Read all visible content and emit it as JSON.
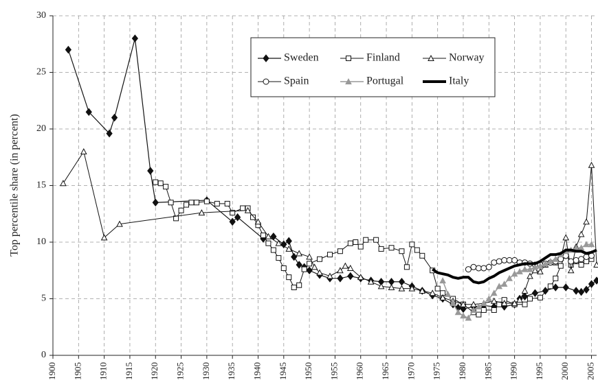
{
  "chart_data": {
    "type": "line",
    "y_label": "Top percentile share (in percent)",
    "xlim": [
      1900,
      2006
    ],
    "ylim": [
      0,
      30
    ],
    "xticks": [
      1900,
      1905,
      1910,
      1915,
      1920,
      1925,
      1930,
      1935,
      1940,
      1945,
      1950,
      1955,
      1960,
      1965,
      1970,
      1975,
      1980,
      1985,
      1990,
      1995,
      2000,
      2005
    ],
    "yticks": [
      0,
      5,
      10,
      15,
      20,
      25,
      30
    ],
    "grid": true,
    "legend": "top",
    "series": [
      {
        "name": "Sweden",
        "color": "#111111",
        "marker": "diamond",
        "linewidth": 1.2,
        "x": [
          1903,
          1907,
          1911,
          1912,
          1916,
          1919,
          1920,
          1930,
          1935,
          1936,
          1941,
          1943,
          1945,
          1946,
          1947,
          1948,
          1949,
          1950,
          1952,
          1954,
          1956,
          1958,
          1960,
          1962,
          1964,
          1966,
          1968,
          1970,
          1972,
          1974,
          1976,
          1978,
          1979,
          1980,
          1982,
          1984,
          1986,
          1988,
          1990,
          1991,
          1992,
          1994,
          1996,
          1998,
          2000,
          2002,
          2003,
          2004,
          2005,
          2006
        ],
        "values": [
          27,
          21.5,
          19.6,
          21,
          28,
          16.3,
          13.5,
          13.7,
          11.8,
          12.2,
          10.3,
          10.5,
          9.8,
          10.1,
          8.7,
          8.0,
          7.8,
          7.5,
          7.1,
          6.8,
          6.8,
          7.0,
          6.8,
          6.6,
          6.5,
          6.5,
          6.5,
          6.1,
          5.7,
          5.3,
          5.0,
          4.5,
          4.2,
          4.1,
          4.3,
          4.4,
          4.3,
          4.3,
          4.5,
          5.0,
          5.2,
          5.5,
          5.7,
          6.0,
          6.0,
          5.7,
          5.6,
          5.8,
          6.3,
          6.6
        ]
      },
      {
        "name": "Finland",
        "color": "#111111",
        "marker": "square-open",
        "linewidth": 1,
        "x": [
          1920,
          1921,
          1922,
          1923,
          1924,
          1925,
          1926,
          1927,
          1928,
          1930,
          1932,
          1934,
          1935,
          1937,
          1938,
          1939,
          1940,
          1941,
          1942,
          1943,
          1944,
          1945,
          1946,
          1947,
          1948,
          1949,
          1950,
          1952,
          1954,
          1956,
          1958,
          1959,
          1960,
          1961,
          1963,
          1964,
          1966,
          1968,
          1969,
          1970,
          1971,
          1972,
          1974,
          1975,
          1976,
          1978,
          1980,
          1982,
          1983,
          1984,
          1986,
          1987,
          1988,
          1990,
          1992,
          1993,
          1995,
          1997,
          1998,
          1999,
          2000,
          2001,
          2002,
          2003,
          2004,
          2005
        ],
        "values": [
          15.3,
          15.2,
          14.9,
          13.5,
          12.1,
          12.8,
          13.3,
          13.5,
          13.5,
          13.6,
          13.4,
          13.4,
          12.6,
          13.0,
          13.0,
          12.2,
          11.5,
          10.6,
          9.9,
          9.3,
          8.6,
          7.7,
          6.9,
          6.0,
          6.2,
          7.6,
          8.1,
          8.5,
          8.9,
          9.2,
          9.9,
          10.0,
          9.6,
          10.2,
          10.2,
          9.4,
          9.5,
          9.2,
          7.8,
          9.8,
          9.3,
          8.8,
          7.5,
          5.9,
          5.5,
          5.0,
          4.5,
          3.8,
          3.6,
          4.0,
          4.0,
          4.5,
          4.9,
          4.5,
          4.5,
          5.0,
          5.1,
          6.1,
          6.8,
          7.9,
          9.0,
          8.0,
          8.3,
          8.0,
          8.3,
          8.5
        ]
      },
      {
        "name": "Norway",
        "color": "#111111",
        "marker": "triangle-open",
        "linewidth": 1,
        "x": [
          1902,
          1906,
          1910,
          1913,
          1929,
          1938,
          1940,
          1942,
          1944,
          1946,
          1948,
          1950,
          1951,
          1952,
          1954,
          1956,
          1957,
          1958,
          1960,
          1962,
          1964,
          1966,
          1968,
          1970,
          1972,
          1974,
          1976,
          1978,
          1980,
          1982,
          1984,
          1986,
          1988,
          1990,
          1991,
          1992,
          1993,
          1994,
          1995,
          1996,
          1998,
          1999,
          2000,
          2001,
          2002,
          2003,
          2004,
          2005,
          2006
        ],
        "values": [
          15.2,
          18.0,
          10.4,
          11.6,
          12.6,
          12.8,
          11.8,
          10.5,
          9.9,
          9.4,
          9.0,
          8.7,
          7.8,
          7.3,
          7.0,
          7.5,
          7.9,
          7.7,
          6.9,
          6.5,
          6.1,
          6.0,
          5.9,
          5.9,
          5.7,
          5.5,
          5.1,
          4.8,
          4.5,
          4.5,
          4.6,
          4.8,
          4.6,
          4.6,
          4.9,
          5.7,
          7.0,
          7.5,
          7.4,
          8.0,
          8.2,
          8.6,
          10.4,
          7.5,
          9.6,
          10.7,
          11.8,
          16.8,
          8.0
        ]
      },
      {
        "name": "Spain",
        "color": "#111111",
        "marker": "circle-open",
        "linewidth": 1,
        "x": [
          1981,
          1982,
          1983,
          1984,
          1985,
          1986,
          1987,
          1988,
          1989,
          1990,
          1991,
          1992,
          1993,
          1994,
          1995,
          1996,
          1997,
          1998,
          1999,
          2000,
          2001,
          2002,
          2003,
          2004,
          2005
        ],
        "values": [
          7.6,
          7.8,
          7.7,
          7.7,
          7.8,
          8.2,
          8.3,
          8.4,
          8.4,
          8.4,
          8.2,
          8.2,
          8.1,
          8.0,
          8.0,
          8.1,
          8.2,
          8.3,
          8.5,
          8.8,
          8.3,
          8.4,
          8.5,
          8.7,
          8.8
        ]
      },
      {
        "name": "Portugal",
        "color": "#999999",
        "marker": "triangle",
        "linewidth": 1.5,
        "x": [
          1976,
          1977,
          1978,
          1979,
          1980,
          1981,
          1982,
          1983,
          1984,
          1985,
          1986,
          1987,
          1988,
          1989,
          1990,
          1991,
          1992,
          1993,
          1994,
          1995,
          1996,
          1997,
          1998,
          1999,
          2000,
          2001,
          2002,
          2003,
          2004,
          2005
        ],
        "values": [
          6.6,
          5.4,
          4.6,
          3.8,
          3.5,
          3.3,
          4.0,
          4.3,
          4.6,
          5.0,
          5.5,
          6.1,
          6.3,
          6.8,
          7.2,
          7.4,
          7.6,
          7.6,
          7.8,
          7.9,
          8.1,
          8.3,
          8.5,
          8.9,
          9.2,
          9.3,
          9.5,
          9.5,
          9.8,
          9.8
        ]
      },
      {
        "name": "Italy",
        "color": "#000000",
        "marker": "none",
        "linewidth": 4,
        "x": [
          1974,
          1975,
          1976,
          1977,
          1978,
          1979,
          1980,
          1981,
          1982,
          1983,
          1984,
          1985,
          1986,
          1987,
          1988,
          1989,
          1990,
          1991,
          1992,
          1993,
          1994,
          1995,
          1996,
          1997,
          1998,
          1999,
          2000,
          2001,
          2002,
          2003,
          2004,
          2005,
          2006
        ],
        "values": [
          7.6,
          7.3,
          7.2,
          7.1,
          6.9,
          6.8,
          6.9,
          6.9,
          6.5,
          6.4,
          6.5,
          6.8,
          7.0,
          7.3,
          7.5,
          7.7,
          7.9,
          8.0,
          8.1,
          8.1,
          8.1,
          8.3,
          8.6,
          8.9,
          8.9,
          9.0,
          9.3,
          9.3,
          9.2,
          9.2,
          9.0,
          9.1,
          9.3
        ]
      }
    ]
  }
}
